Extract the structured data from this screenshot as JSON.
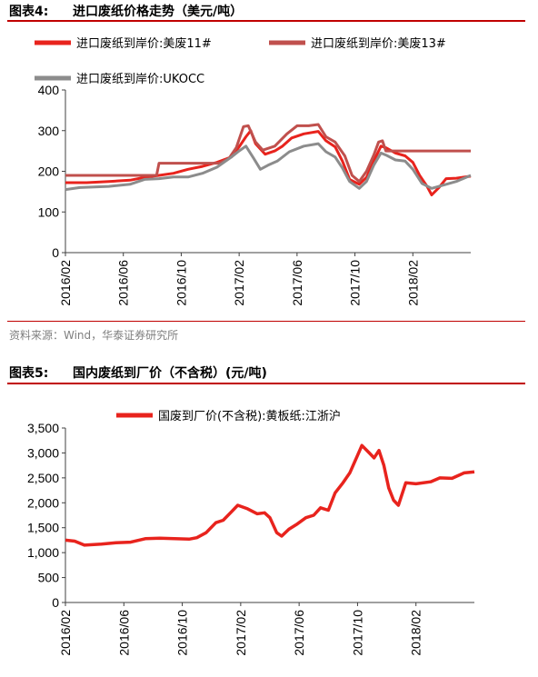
{
  "figure4": {
    "label": "图表4:",
    "title": "进口废纸价格走势（美元/吨）",
    "source": "资料来源：Wind，华泰证券研究所"
  },
  "figure5": {
    "label": "图表5:",
    "title": "国内废纸到厂价（不含税）(元/吨)"
  },
  "colors": {
    "rule": "#c00000",
    "red": "#e8231d",
    "brick": "#c0504d",
    "gray": "#8c8c8c",
    "axis": "#404040"
  },
  "chart_data": [
    {
      "type": "line",
      "ylim": [
        0,
        400
      ],
      "yticks": [
        "0",
        "100",
        "200",
        "300",
        "400"
      ],
      "xlim": [
        "2016-02",
        "2018-06"
      ],
      "xticks": [
        "2016/02",
        "2016/06",
        "2016/10",
        "2017/02",
        "2017/06",
        "2017/10",
        "2018/02"
      ],
      "legend_position": "top",
      "series": [
        {
          "name": "进口废纸到岸价:美废11#",
          "color": "#e8231d",
          "points": [
            [
              "2016-02-01",
              172
            ],
            [
              "2016-03-15",
              172
            ],
            [
              "2016-05-01",
              175
            ],
            [
              "2016-06-15",
              178
            ],
            [
              "2016-07-15",
              185
            ],
            [
              "2016-08-15",
              190
            ],
            [
              "2016-09-15",
              195
            ],
            [
              "2016-10-15",
              205
            ],
            [
              "2016-11-15",
              212
            ],
            [
              "2016-12-15",
              222
            ],
            [
              "2017-01-15",
              235
            ],
            [
              "2017-02-01",
              260
            ],
            [
              "2017-02-15",
              285
            ],
            [
              "2017-02-25",
              300
            ],
            [
              "2017-03-05",
              268
            ],
            [
              "2017-03-25",
              242
            ],
            [
              "2017-04-15",
              250
            ],
            [
              "2017-05-01",
              262
            ],
            [
              "2017-05-20",
              282
            ],
            [
              "2017-06-15",
              292
            ],
            [
              "2017-07-15",
              298
            ],
            [
              "2017-08-01",
              275
            ],
            [
              "2017-08-20",
              260
            ],
            [
              "2017-09-05",
              225
            ],
            [
              "2017-09-20",
              180
            ],
            [
              "2017-10-10",
              168
            ],
            [
              "2017-10-25",
              185
            ],
            [
              "2017-11-10",
              225
            ],
            [
              "2017-11-25",
              262
            ],
            [
              "2017-12-05",
              258
            ],
            [
              "2017-12-25",
              245
            ],
            [
              "2018-01-15",
              238
            ],
            [
              "2018-02-01",
              222
            ],
            [
              "2018-02-15",
              190
            ],
            [
              "2018-03-01",
              162
            ],
            [
              "2018-03-10",
              142
            ],
            [
              "2018-03-25",
              160
            ],
            [
              "2018-04-10",
              182
            ],
            [
              "2018-05-01",
              183
            ],
            [
              "2018-06-01",
              188
            ]
          ]
        },
        {
          "name": "进口废纸到岸价:美废13#",
          "color": "#c0504d",
          "points": [
            [
              "2016-02-01",
              190
            ],
            [
              "2016-08-10",
              190
            ],
            [
              "2016-08-15",
              220
            ],
            [
              "2016-12-20",
              220
            ],
            [
              "2017-01-10",
              232
            ],
            [
              "2017-01-25",
              258
            ],
            [
              "2017-02-10",
              310
            ],
            [
              "2017-02-20",
              312
            ],
            [
              "2017-03-05",
              272
            ],
            [
              "2017-03-20",
              252
            ],
            [
              "2017-04-15",
              262
            ],
            [
              "2017-05-10",
              292
            ],
            [
              "2017-06-01",
              312
            ],
            [
              "2017-06-25",
              312
            ],
            [
              "2017-07-15",
              315
            ],
            [
              "2017-08-01",
              285
            ],
            [
              "2017-08-20",
              272
            ],
            [
              "2017-09-10",
              238
            ],
            [
              "2017-09-25",
              190
            ],
            [
              "2017-10-10",
              175
            ],
            [
              "2017-10-25",
              200
            ],
            [
              "2017-11-10",
              240
            ],
            [
              "2017-11-20",
              272
            ],
            [
              "2017-11-28",
              275
            ],
            [
              "2017-12-05",
              250
            ],
            [
              "2018-06-01",
              250
            ]
          ]
        },
        {
          "name": "进口废纸到岸价:UKOCC",
          "color": "#8c8c8c",
          "points": [
            [
              "2016-02-01",
              155
            ],
            [
              "2016-03-01",
              160
            ],
            [
              "2016-05-01",
              163
            ],
            [
              "2016-06-15",
              168
            ],
            [
              "2016-07-15",
              180
            ],
            [
              "2016-08-15",
              182
            ],
            [
              "2016-09-15",
              186
            ],
            [
              "2016-10-15",
              186
            ],
            [
              "2016-11-15",
              195
            ],
            [
              "2016-12-15",
              210
            ],
            [
              "2017-01-15",
              235
            ],
            [
              "2017-02-01",
              250
            ],
            [
              "2017-02-15",
              262
            ],
            [
              "2017-03-01",
              232
            ],
            [
              "2017-03-15",
              205
            ],
            [
              "2017-04-01",
              215
            ],
            [
              "2017-04-20",
              225
            ],
            [
              "2017-05-15",
              248
            ],
            [
              "2017-06-15",
              262
            ],
            [
              "2017-07-15",
              268
            ],
            [
              "2017-08-01",
              248
            ],
            [
              "2017-08-20",
              235
            ],
            [
              "2017-09-05",
              208
            ],
            [
              "2017-09-20",
              175
            ],
            [
              "2017-10-10",
              158
            ],
            [
              "2017-10-25",
              175
            ],
            [
              "2017-11-10",
              215
            ],
            [
              "2017-11-25",
              245
            ],
            [
              "2017-12-05",
              240
            ],
            [
              "2017-12-25",
              228
            ],
            [
              "2018-01-15",
              225
            ],
            [
              "2018-02-01",
              205
            ],
            [
              "2018-02-20",
              170
            ],
            [
              "2018-03-10",
              158
            ],
            [
              "2018-04-01",
              165
            ],
            [
              "2018-05-01",
              175
            ],
            [
              "2018-06-01",
              190
            ]
          ]
        }
      ]
    },
    {
      "type": "line",
      "ylim": [
        0,
        3500
      ],
      "yticks": [
        "0",
        "500",
        "1,000",
        "1,500",
        "2,000",
        "2,500",
        "3,000",
        "3,500"
      ],
      "xlim": [
        "2016-02",
        "2018-06"
      ],
      "xticks": [
        "2016/02",
        "2016/06",
        "2016/10",
        "2017/02",
        "2017/06",
        "2017/10",
        "2018/02"
      ],
      "legend_position": "top",
      "series": [
        {
          "name": "国废到厂价(不含税):黄板纸:江浙沪",
          "color": "#e8231d",
          "points": [
            [
              "2016-02-01",
              1250
            ],
            [
              "2016-02-20",
              1230
            ],
            [
              "2016-03-10",
              1150
            ],
            [
              "2016-04-15",
              1170
            ],
            [
              "2016-05-15",
              1200
            ],
            [
              "2016-06-15",
              1210
            ],
            [
              "2016-07-15",
              1280
            ],
            [
              "2016-08-15",
              1290
            ],
            [
              "2016-09-15",
              1280
            ],
            [
              "2016-10-15",
              1270
            ],
            [
              "2016-11-01",
              1300
            ],
            [
              "2016-11-20",
              1400
            ],
            [
              "2016-12-10",
              1600
            ],
            [
              "2016-12-25",
              1650
            ],
            [
              "2017-01-10",
              1800
            ],
            [
              "2017-01-25",
              1950
            ],
            [
              "2017-02-15",
              1880
            ],
            [
              "2017-03-05",
              1780
            ],
            [
              "2017-03-20",
              1800
            ],
            [
              "2017-04-01",
              1700
            ],
            [
              "2017-04-15",
              1400
            ],
            [
              "2017-04-25",
              1330
            ],
            [
              "2017-05-10",
              1470
            ],
            [
              "2017-05-25",
              1560
            ],
            [
              "2017-06-15",
              1700
            ],
            [
              "2017-07-01",
              1750
            ],
            [
              "2017-07-15",
              1900
            ],
            [
              "2017-08-01",
              1850
            ],
            [
              "2017-08-15",
              2200
            ],
            [
              "2017-09-01",
              2400
            ],
            [
              "2017-09-15",
              2600
            ],
            [
              "2017-10-01",
              2950
            ],
            [
              "2017-10-10",
              3150
            ],
            [
              "2017-10-25",
              3000
            ],
            [
              "2017-11-05",
              2900
            ],
            [
              "2017-11-15",
              3050
            ],
            [
              "2017-11-25",
              2750
            ],
            [
              "2017-12-05",
              2300
            ],
            [
              "2017-12-15",
              2050
            ],
            [
              "2017-12-25",
              1950
            ],
            [
              "2018-01-10",
              2400
            ],
            [
              "2018-02-01",
              2380
            ],
            [
              "2018-03-01",
              2420
            ],
            [
              "2018-03-20",
              2500
            ],
            [
              "2018-04-15",
              2490
            ],
            [
              "2018-05-10",
              2600
            ],
            [
              "2018-06-01",
              2620
            ]
          ]
        }
      ]
    }
  ]
}
